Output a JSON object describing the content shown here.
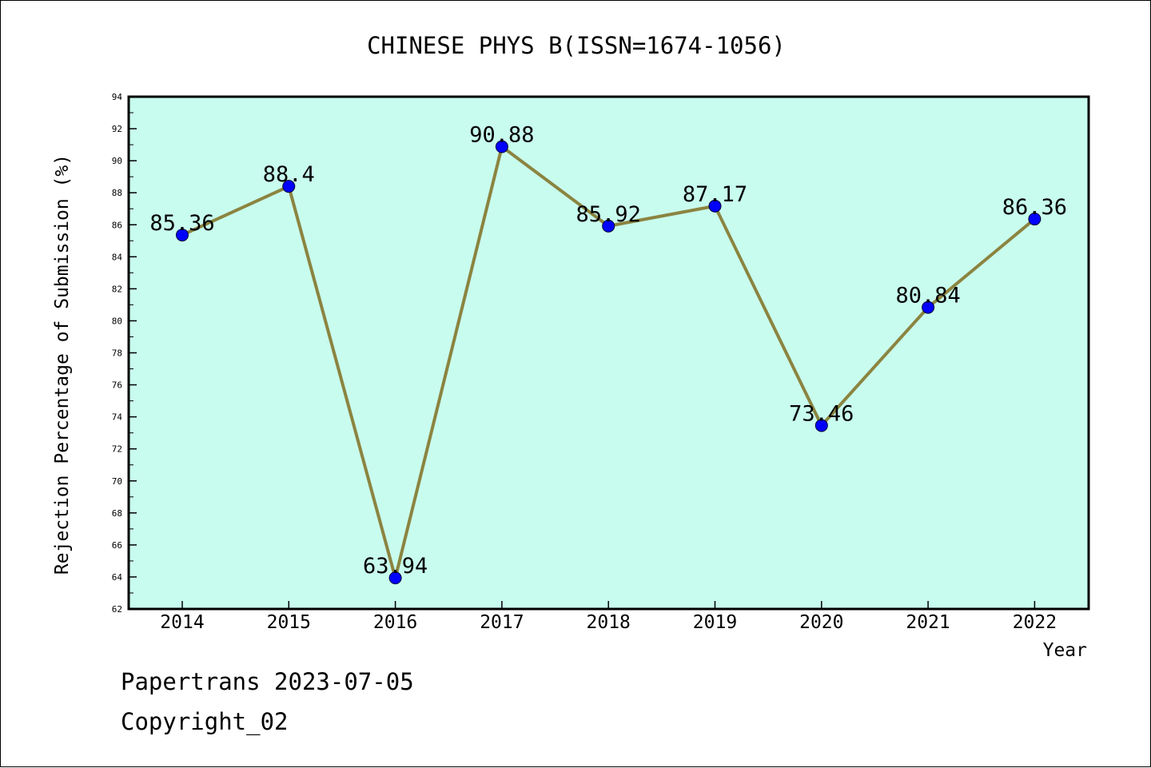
{
  "chart_data": {
    "type": "line",
    "title": "CHINESE PHYS B(ISSN=1674-1056)",
    "xlabel": "Year",
    "ylabel": "Rejection Percentage of Submission (%)",
    "categories": [
      "2014",
      "2015",
      "2016",
      "2017",
      "2018",
      "2019",
      "2020",
      "2021",
      "2022"
    ],
    "series": [
      {
        "values": [
          85.36,
          88.4,
          63.94,
          90.88,
          85.92,
          87.17,
          73.46,
          80.84,
          86.36
        ],
        "labels": [
          "85.36",
          "88.4",
          "63.94",
          "90.88",
          "85.92",
          "87.17",
          "73.46",
          "80.84",
          "86.36"
        ],
        "line_color": "#8b8440",
        "marker_color": "#0000ff"
      }
    ],
    "ylim": [
      62,
      94
    ],
    "yticks": [
      "62",
      "64",
      "66",
      "68",
      "70",
      "72",
      "74",
      "76",
      "78",
      "80",
      "82",
      "84",
      "86",
      "88",
      "90",
      "92",
      "94"
    ],
    "grid": false,
    "plot_background": "#c8fcee"
  },
  "footer": {
    "line1": "Papertrans 2023-07-05",
    "line2": "Copyright_02"
  }
}
